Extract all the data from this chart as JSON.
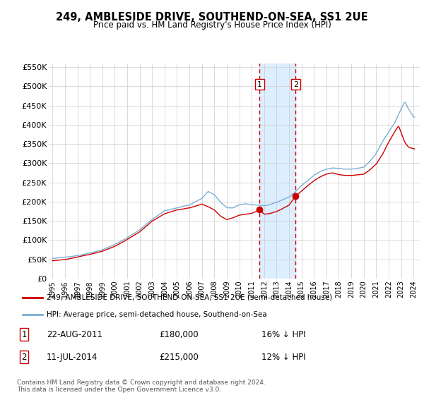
{
  "title": "249, AMBLESIDE DRIVE, SOUTHEND-ON-SEA, SS1 2UE",
  "subtitle": "Price paid vs. HM Land Registry's House Price Index (HPI)",
  "ylim": [
    0,
    560000
  ],
  "yticks": [
    0,
    50000,
    100000,
    150000,
    200000,
    250000,
    300000,
    350000,
    400000,
    450000,
    500000,
    550000
  ],
  "ytick_labels": [
    "£0",
    "£50K",
    "£100K",
    "£150K",
    "£200K",
    "£250K",
    "£300K",
    "£350K",
    "£400K",
    "£450K",
    "£500K",
    "£550K"
  ],
  "sale1_date": "22-AUG-2011",
  "sale1_price": 180000,
  "sale2_date": "11-JUL-2014",
  "sale2_price": 215000,
  "sale1_pct": "16% ↓ HPI",
  "sale2_pct": "12% ↓ HPI",
  "sale1_x": 2011.64,
  "sale2_x": 2014.53,
  "property_color": "#cc0000",
  "hpi_color": "#7aafd4",
  "highlight_color": "#ddeeff",
  "legend_property": "249, AMBLESIDE DRIVE, SOUTHEND-ON-SEA, SS1 2UE (semi-detached house)",
  "legend_hpi": "HPI: Average price, semi-detached house, Southend-on-Sea",
  "footnote": "Contains HM Land Registry data © Crown copyright and database right 2024.\nThis data is licensed under the Open Government Licence v3.0.",
  "xlim": [
    1994.7,
    2024.5
  ],
  "xtick_years": [
    1995,
    1996,
    1997,
    1998,
    1999,
    2000,
    2001,
    2002,
    2003,
    2004,
    2005,
    2006,
    2007,
    2008,
    2009,
    2010,
    2011,
    2012,
    2013,
    2014,
    2015,
    2016,
    2017,
    2018,
    2019,
    2020,
    2021,
    2022,
    2023,
    2024
  ]
}
